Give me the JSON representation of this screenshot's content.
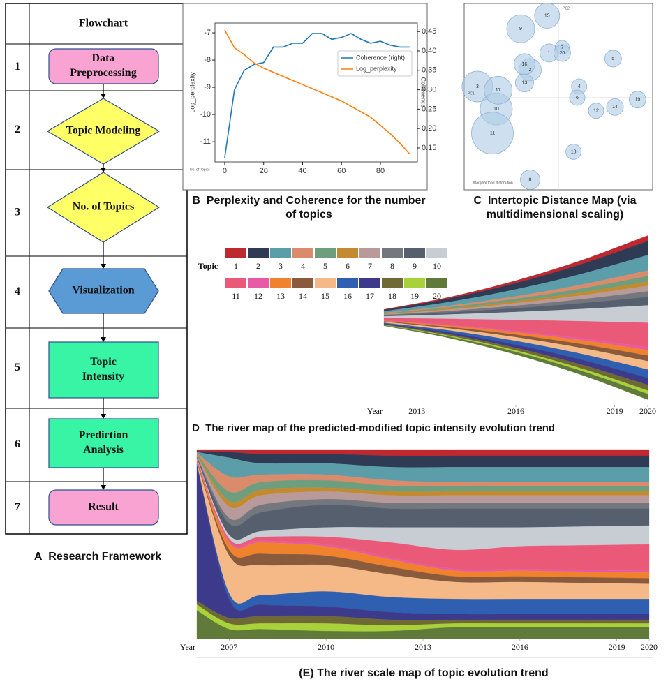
{
  "flowchart": {
    "panel": "A",
    "caption": "Research Framework",
    "header": "Flowchart",
    "steps": [
      {
        "number": "1",
        "lines": [
          "Data",
          "Preprocessing"
        ]
      },
      {
        "number": "2",
        "lines": [
          "Topic Modeling"
        ]
      },
      {
        "number": "3",
        "lines": [
          "No. of Topics"
        ]
      },
      {
        "number": "4",
        "lines": [
          "Visualization"
        ]
      },
      {
        "number": "5",
        "lines": [
          "Topic",
          "Intensity"
        ]
      },
      {
        "number": "6",
        "lines": [
          "Prediction",
          "Analysis"
        ]
      },
      {
        "number": "7",
        "lines": [
          "Result"
        ]
      }
    ]
  },
  "chart_data": [
    {
      "type": "line",
      "panel": "B",
      "title": "Perplexity and Coherence for the number of topics",
      "ylabel": "Log_perplexity",
      "y2label": "Coherence",
      "xlabel": "No. of Topics",
      "x": [
        0,
        5,
        10,
        15,
        20,
        25,
        30,
        35,
        40,
        45,
        50,
        55,
        60,
        65,
        70,
        75,
        80,
        85,
        90,
        95
      ],
      "xlim": [
        -5,
        99
      ],
      "xticks": [
        0,
        20,
        40,
        60,
        80
      ],
      "ylim": [
        -11.74,
        -6.64
      ],
      "yticks": [
        -7,
        -8,
        -9,
        -10,
        -11
      ],
      "y2lim": [
        0.114,
        0.472
      ],
      "y2ticks": [
        0.15,
        {
          "value": 0.2,
          "label": "0.20"
        },
        0.25,
        {
          "value": 0.3,
          "label": "0.30"
        },
        0.35,
        {
          "value": 0.4,
          "label": "0.40"
        },
        0.45
      ],
      "legend": "upper right",
      "series": [
        {
          "name": "Coherence (right)",
          "color": "#1f77b4",
          "axis": "y2",
          "values": [
            0.125,
            0.3,
            0.35,
            0.365,
            0.37,
            0.41,
            0.41,
            0.42,
            0.42,
            0.445,
            0.445,
            0.43,
            0.435,
            0.445,
            0.43,
            0.42,
            0.425,
            0.415,
            0.41,
            0.41
          ]
        },
        {
          "name": "Log_perplexity",
          "color": "#ff7f0e",
          "values": [
            -6.9,
            -7.55,
            -7.8,
            -8.1,
            -8.3,
            -8.45,
            -8.6,
            -8.75,
            -8.9,
            -9.05,
            -9.2,
            -9.35,
            -9.5,
            -9.7,
            -9.9,
            -10.1,
            -10.4,
            -10.7,
            -11.05,
            -11.45
          ]
        }
      ]
    },
    {
      "type": "scatter",
      "panel": "C",
      "title": "Intertopic Distance Map (via multidimensional scaling)",
      "annotations": [
        "PC1",
        "PC2",
        "Marginal topic distribution"
      ],
      "labels": [
        "1",
        "2",
        "3",
        "4",
        "5",
        "6",
        "7",
        "8",
        "9",
        "10",
        "11",
        "12",
        "13",
        "14",
        "15",
        "16",
        "17",
        "18",
        "19",
        "20"
      ],
      "x": [
        -0.05,
        -0.15,
        -0.43,
        0.11,
        0.29,
        0.1,
        0.02,
        -0.15,
        -0.2,
        -0.33,
        -0.35,
        0.2,
        -0.18,
        0.3,
        -0.06,
        -0.18,
        -0.32,
        0.08,
        0.42,
        0.02
      ],
      "y": [
        0.24,
        0.15,
        0.06,
        0.06,
        0.21,
        0.0,
        0.27,
        -0.44,
        0.37,
        -0.06,
        -0.19,
        -0.07,
        0.08,
        -0.05,
        0.44,
        0.18,
        0.04,
        -0.29,
        -0.01,
        0.24
      ],
      "sizes": [
        13,
        16,
        22,
        11,
        12,
        11,
        10,
        14,
        20,
        23,
        30,
        11,
        13,
        12,
        18,
        15,
        20,
        11,
        12,
        12
      ],
      "xlim": [
        -0.5,
        0.5
      ],
      "ylim": [
        -0.5,
        0.5
      ],
      "color": "#aecbe4"
    },
    {
      "type": "streamgraph",
      "panel": "D",
      "title": "The river map of the predicted-modified topic intensity evolution trend",
      "legend_title": "Topic",
      "xlabel": "Year",
      "x": [
        2012,
        2014,
        2016,
        2018,
        2020
      ],
      "xlim": [
        2012,
        2020
      ],
      "xticks": [
        2013,
        2016,
        2019,
        2020
      ],
      "ylim": [
        -125,
        125
      ],
      "series": [
        {
          "name": "1",
          "color": "#c0282f",
          "values": [
            0.8,
            2,
            3.6,
            5.6,
            8
          ]
        },
        {
          "name": "2",
          "color": "#2f3a55",
          "values": [
            2,
            5,
            9,
            14,
            20
          ]
        },
        {
          "name": "3",
          "color": "#5b9ea9",
          "values": [
            2.2,
            5.5,
            9.9,
            15.4,
            22
          ]
        },
        {
          "name": "4",
          "color": "#d98b6c",
          "values": [
            0.8,
            2,
            3.6,
            5.6,
            8
          ]
        },
        {
          "name": "5",
          "color": "#6e9e7e",
          "values": [
            0.8,
            2,
            3.6,
            5.6,
            8
          ]
        },
        {
          "name": "6",
          "color": "#c48a2f",
          "values": [
            0.6,
            1.5,
            2.7,
            4.2,
            6
          ]
        },
        {
          "name": "7",
          "color": "#b99a9a",
          "values": [
            0.8,
            2,
            3.6,
            5.6,
            8
          ]
        },
        {
          "name": "8",
          "color": "#74777d",
          "values": [
            0.8,
            2,
            3.6,
            5.6,
            8
          ]
        },
        {
          "name": "9",
          "color": "#555f6e",
          "values": [
            1.2,
            3,
            5.4,
            8.4,
            12
          ]
        },
        {
          "name": "10",
          "color": "#c8cdd4",
          "values": [
            2.5,
            6.3,
            11.3,
            17.5,
            25
          ]
        },
        {
          "name": "11",
          "color": "#ea5a78",
          "values": [
            3.5,
            8.8,
            15.8,
            24.5,
            35
          ]
        },
        {
          "name": "12",
          "color": "#e85aa5",
          "values": [
            0.4,
            1,
            1.8,
            2.8,
            4
          ]
        },
        {
          "name": "13",
          "color": "#f0822e",
          "values": [
            0.8,
            2,
            3.6,
            5.6,
            8
          ]
        },
        {
          "name": "14",
          "color": "#8a5a3c",
          "values": [
            0.8,
            2,
            3.6,
            5.6,
            8
          ]
        },
        {
          "name": "15",
          "color": "#f5b887",
          "values": [
            1.2,
            3,
            5.4,
            8.4,
            12
          ]
        },
        {
          "name": "16",
          "color": "#2f5fb0",
          "values": [
            1.2,
            3,
            5.4,
            8.4,
            12
          ]
        },
        {
          "name": "17",
          "color": "#3d3a8c",
          "values": [
            1,
            2.5,
            4.5,
            7,
            10
          ]
        },
        {
          "name": "18",
          "color": "#6f6a35",
          "values": [
            0.8,
            2,
            3.6,
            5.6,
            8
          ]
        },
        {
          "name": "19",
          "color": "#a8d13a",
          "values": [
            0.5,
            1.3,
            2.3,
            3.5,
            5
          ]
        },
        {
          "name": "20",
          "color": "#607a3a",
          "values": [
            0.8,
            2,
            3.6,
            5.6,
            8
          ]
        }
      ]
    },
    {
      "type": "stacked_area",
      "panel": "(E)",
      "title": "The river scale map of topic evolution trend",
      "xlabel": "Year",
      "x": [
        2006,
        2007,
        2008,
        2010,
        2012,
        2014,
        2016,
        2018,
        2020
      ],
      "xlim": [
        2006,
        2020
      ],
      "xticks": [
        2007,
        2010,
        2013,
        2016,
        2019,
        2020
      ],
      "ylim": [
        0,
        100
      ],
      "series": [
        {
          "color": "#c0282f",
          "values": [
            0.5,
            1,
            2,
            2,
            3,
            3,
            3,
            3,
            3
          ]
        },
        {
          "color": "#2f3a55",
          "values": [
            0.5,
            3,
            5,
            5,
            6,
            6,
            6,
            6,
            6
          ]
        },
        {
          "color": "#5b9ea9",
          "values": [
            0.5,
            10,
            6,
            6,
            7,
            8,
            8,
            8,
            8
          ]
        },
        {
          "color": "#d98b6c",
          "values": [
            0.5,
            8,
            4,
            3,
            3,
            2,
            2,
            2,
            2
          ]
        },
        {
          "color": "#6e9e7e",
          "values": [
            0.5,
            5,
            4,
            4,
            3,
            3,
            3,
            3,
            3
          ]
        },
        {
          "color": "#c48a2f",
          "values": [
            0.5,
            3,
            3,
            2,
            2,
            2,
            2,
            2,
            2
          ]
        },
        {
          "color": "#b99a9a",
          "values": [
            0.5,
            6,
            5,
            4,
            4,
            4,
            4,
            4,
            4
          ]
        },
        {
          "color": "#74777d",
          "values": [
            0.5,
            3,
            4,
            3,
            3,
            3,
            3,
            3,
            3
          ]
        },
        {
          "color": "#555f6e",
          "values": [
            0.5,
            6,
            10,
            12,
            10,
            10,
            10,
            9.5,
            9
          ]
        },
        {
          "color": "#c8cdd4",
          "values": [
            0.5,
            2,
            3,
            5,
            8,
            12,
            10,
            10,
            10
          ]
        },
        {
          "color": "#ea5a78",
          "values": [
            0.5,
            1,
            2,
            4,
            8,
            10,
            12,
            13,
            14
          ]
        },
        {
          "color": "#e85aa5",
          "values": [
            0.5,
            1,
            1,
            1,
            1,
            1,
            1,
            1,
            1
          ]
        },
        {
          "color": "#f0822e",
          "values": [
            0.5,
            4,
            6,
            5,
            4,
            3,
            3,
            3,
            3
          ]
        },
        {
          "color": "#8a5a3c",
          "values": [
            0.5,
            3,
            6,
            5,
            4,
            3,
            3,
            3,
            3
          ]
        },
        {
          "color": "#f5b887",
          "values": [
            0.5,
            20,
            16,
            14,
            12,
            9,
            9,
            8.5,
            8
          ]
        },
        {
          "color": "#2f5fb0",
          "values": [
            0.5,
            3,
            5,
            8,
            8,
            8,
            8,
            8,
            8
          ]
        },
        {
          "color": "#3d3a8c",
          "values": [
            72,
            10,
            6,
            5,
            4,
            3,
            3,
            3,
            3
          ]
        },
        {
          "color": "#6f6a35",
          "values": [
            2,
            3,
            4,
            4,
            3,
            2,
            2,
            2,
            2
          ]
        },
        {
          "color": "#a8d13a",
          "values": [
            3,
            3,
            3,
            4,
            3,
            2,
            2,
            2,
            2
          ]
        },
        {
          "color": "#607a3a",
          "values": [
            15,
            5,
            5,
            4,
            4,
            6,
            6,
            6,
            6
          ]
        }
      ]
    }
  ]
}
